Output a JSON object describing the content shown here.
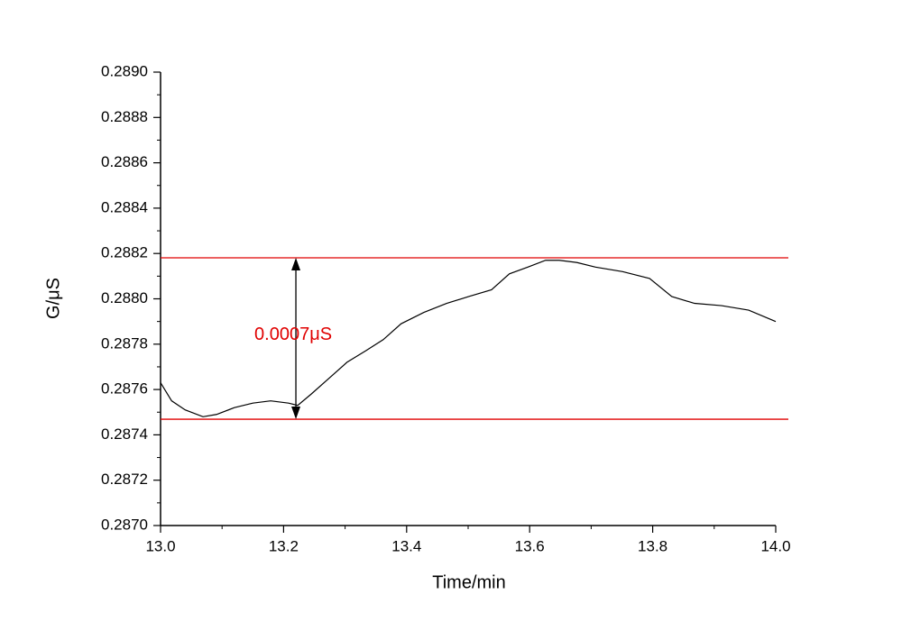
{
  "chart_data": {
    "type": "line",
    "x_label": "Time/min",
    "y_label": "G/μS",
    "x": [
      13.0,
      13.018,
      13.04,
      13.069,
      13.091,
      13.12,
      13.15,
      13.179,
      13.208,
      13.223,
      13.245,
      13.274,
      13.303,
      13.333,
      13.362,
      13.391,
      13.428,
      13.465,
      13.501,
      13.538,
      13.567,
      13.597,
      13.626,
      13.648,
      13.677,
      13.707,
      13.751,
      13.795,
      13.831,
      13.868,
      13.912,
      13.956,
      14.0
    ],
    "series": [
      {
        "color": "#000000",
        "values": [
          0.28763,
          0.28755,
          0.28751,
          0.28748,
          0.28749,
          0.28752,
          0.28754,
          0.28755,
          0.28754,
          0.28753,
          0.28758,
          0.28765,
          0.28772,
          0.28777,
          0.28782,
          0.28789,
          0.28794,
          0.28798,
          0.28801,
          0.28804,
          0.28811,
          0.28814,
          0.28817,
          0.28817,
          0.28816,
          0.28814,
          0.28812,
          0.28809,
          0.28801,
          0.28798,
          0.28797,
          0.28795,
          0.2879
        ]
      }
    ],
    "reference_lines": [
      0.288181,
      0.287469
    ],
    "reference_color": "#e00000",
    "annotation": "0.0007μS",
    "xlim": [
      13.0,
      14.0
    ],
    "xticks": [
      {
        "value": 13.0,
        "label": "13.0"
      },
      13.2,
      13.4,
      13.6,
      13.8,
      {
        "value": 14.0,
        "label": "14.0"
      }
    ],
    "ylim": [
      0.287,
      0.289
    ],
    "yticks": [
      {
        "value": 0.287,
        "label": "0.2870"
      },
      0.2872,
      0.2874,
      0.2876,
      0.2878,
      {
        "value": 0.288,
        "label": "0.2880"
      },
      0.2882,
      0.2884,
      0.2886,
      0.2888,
      {
        "value": 0.289,
        "label": "0.2890"
      }
    ],
    "grid": false
  }
}
